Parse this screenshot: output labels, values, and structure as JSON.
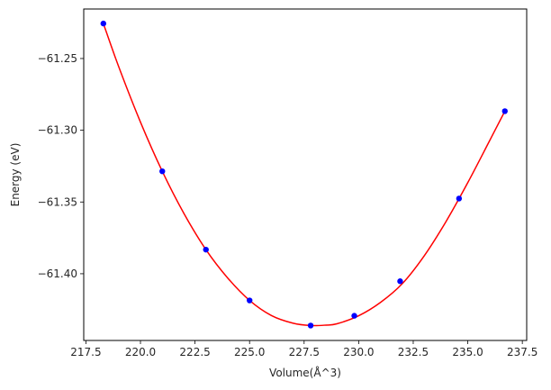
{
  "chart_data": {
    "type": "line",
    "xlabel": "Volume(Å^3)",
    "ylabel": "Energy (eV)",
    "xlim": [
      217.4,
      237.7
    ],
    "ylim": [
      -61.4465,
      -61.2155
    ],
    "xticks": [
      217.5,
      220.0,
      222.5,
      225.0,
      227.5,
      230.0,
      232.5,
      235.0,
      237.5
    ],
    "xtick_labels": [
      "217.5",
      "220.0",
      "222.5",
      "225.0",
      "227.5",
      "230.0",
      "232.5",
      "235.0",
      "237.5"
    ],
    "yticks": [
      -61.25,
      -61.3,
      -61.35,
      -61.4
    ],
    "ytick_labels": [
      "−61.25",
      "−61.30",
      "−61.35",
      "−61.40"
    ],
    "grid": false,
    "series": [
      {
        "kind": "scatter",
        "color": "#0000ff",
        "x": [
          218.3,
          221.0,
          223.0,
          225.0,
          227.8,
          229.8,
          231.9,
          234.6,
          236.7
        ],
        "y": [
          -61.2256,
          -61.3286,
          -61.3832,
          -61.4186,
          -61.4361,
          -61.4293,
          -61.4052,
          -61.3476,
          -61.2867
        ]
      },
      {
        "kind": "fit",
        "color": "#ff0000",
        "x": [
          218.3,
          219.0,
          220.0,
          221.0,
          222.0,
          223.0,
          224.0,
          225.0,
          226.0,
          227.0,
          227.8,
          228.5,
          229.0,
          230.0,
          231.0,
          232.0,
          233.0,
          234.0,
          235.0,
          236.0,
          236.7
        ],
        "y": [
          -61.2256,
          -61.2556,
          -61.2943,
          -61.3286,
          -61.3582,
          -61.3832,
          -61.403,
          -61.4186,
          -61.4291,
          -61.4345,
          -61.4361,
          -61.4358,
          -61.4349,
          -61.4293,
          -61.42,
          -61.4069,
          -61.3876,
          -61.3637,
          -61.3365,
          -61.3073,
          -61.2867
        ]
      }
    ]
  }
}
